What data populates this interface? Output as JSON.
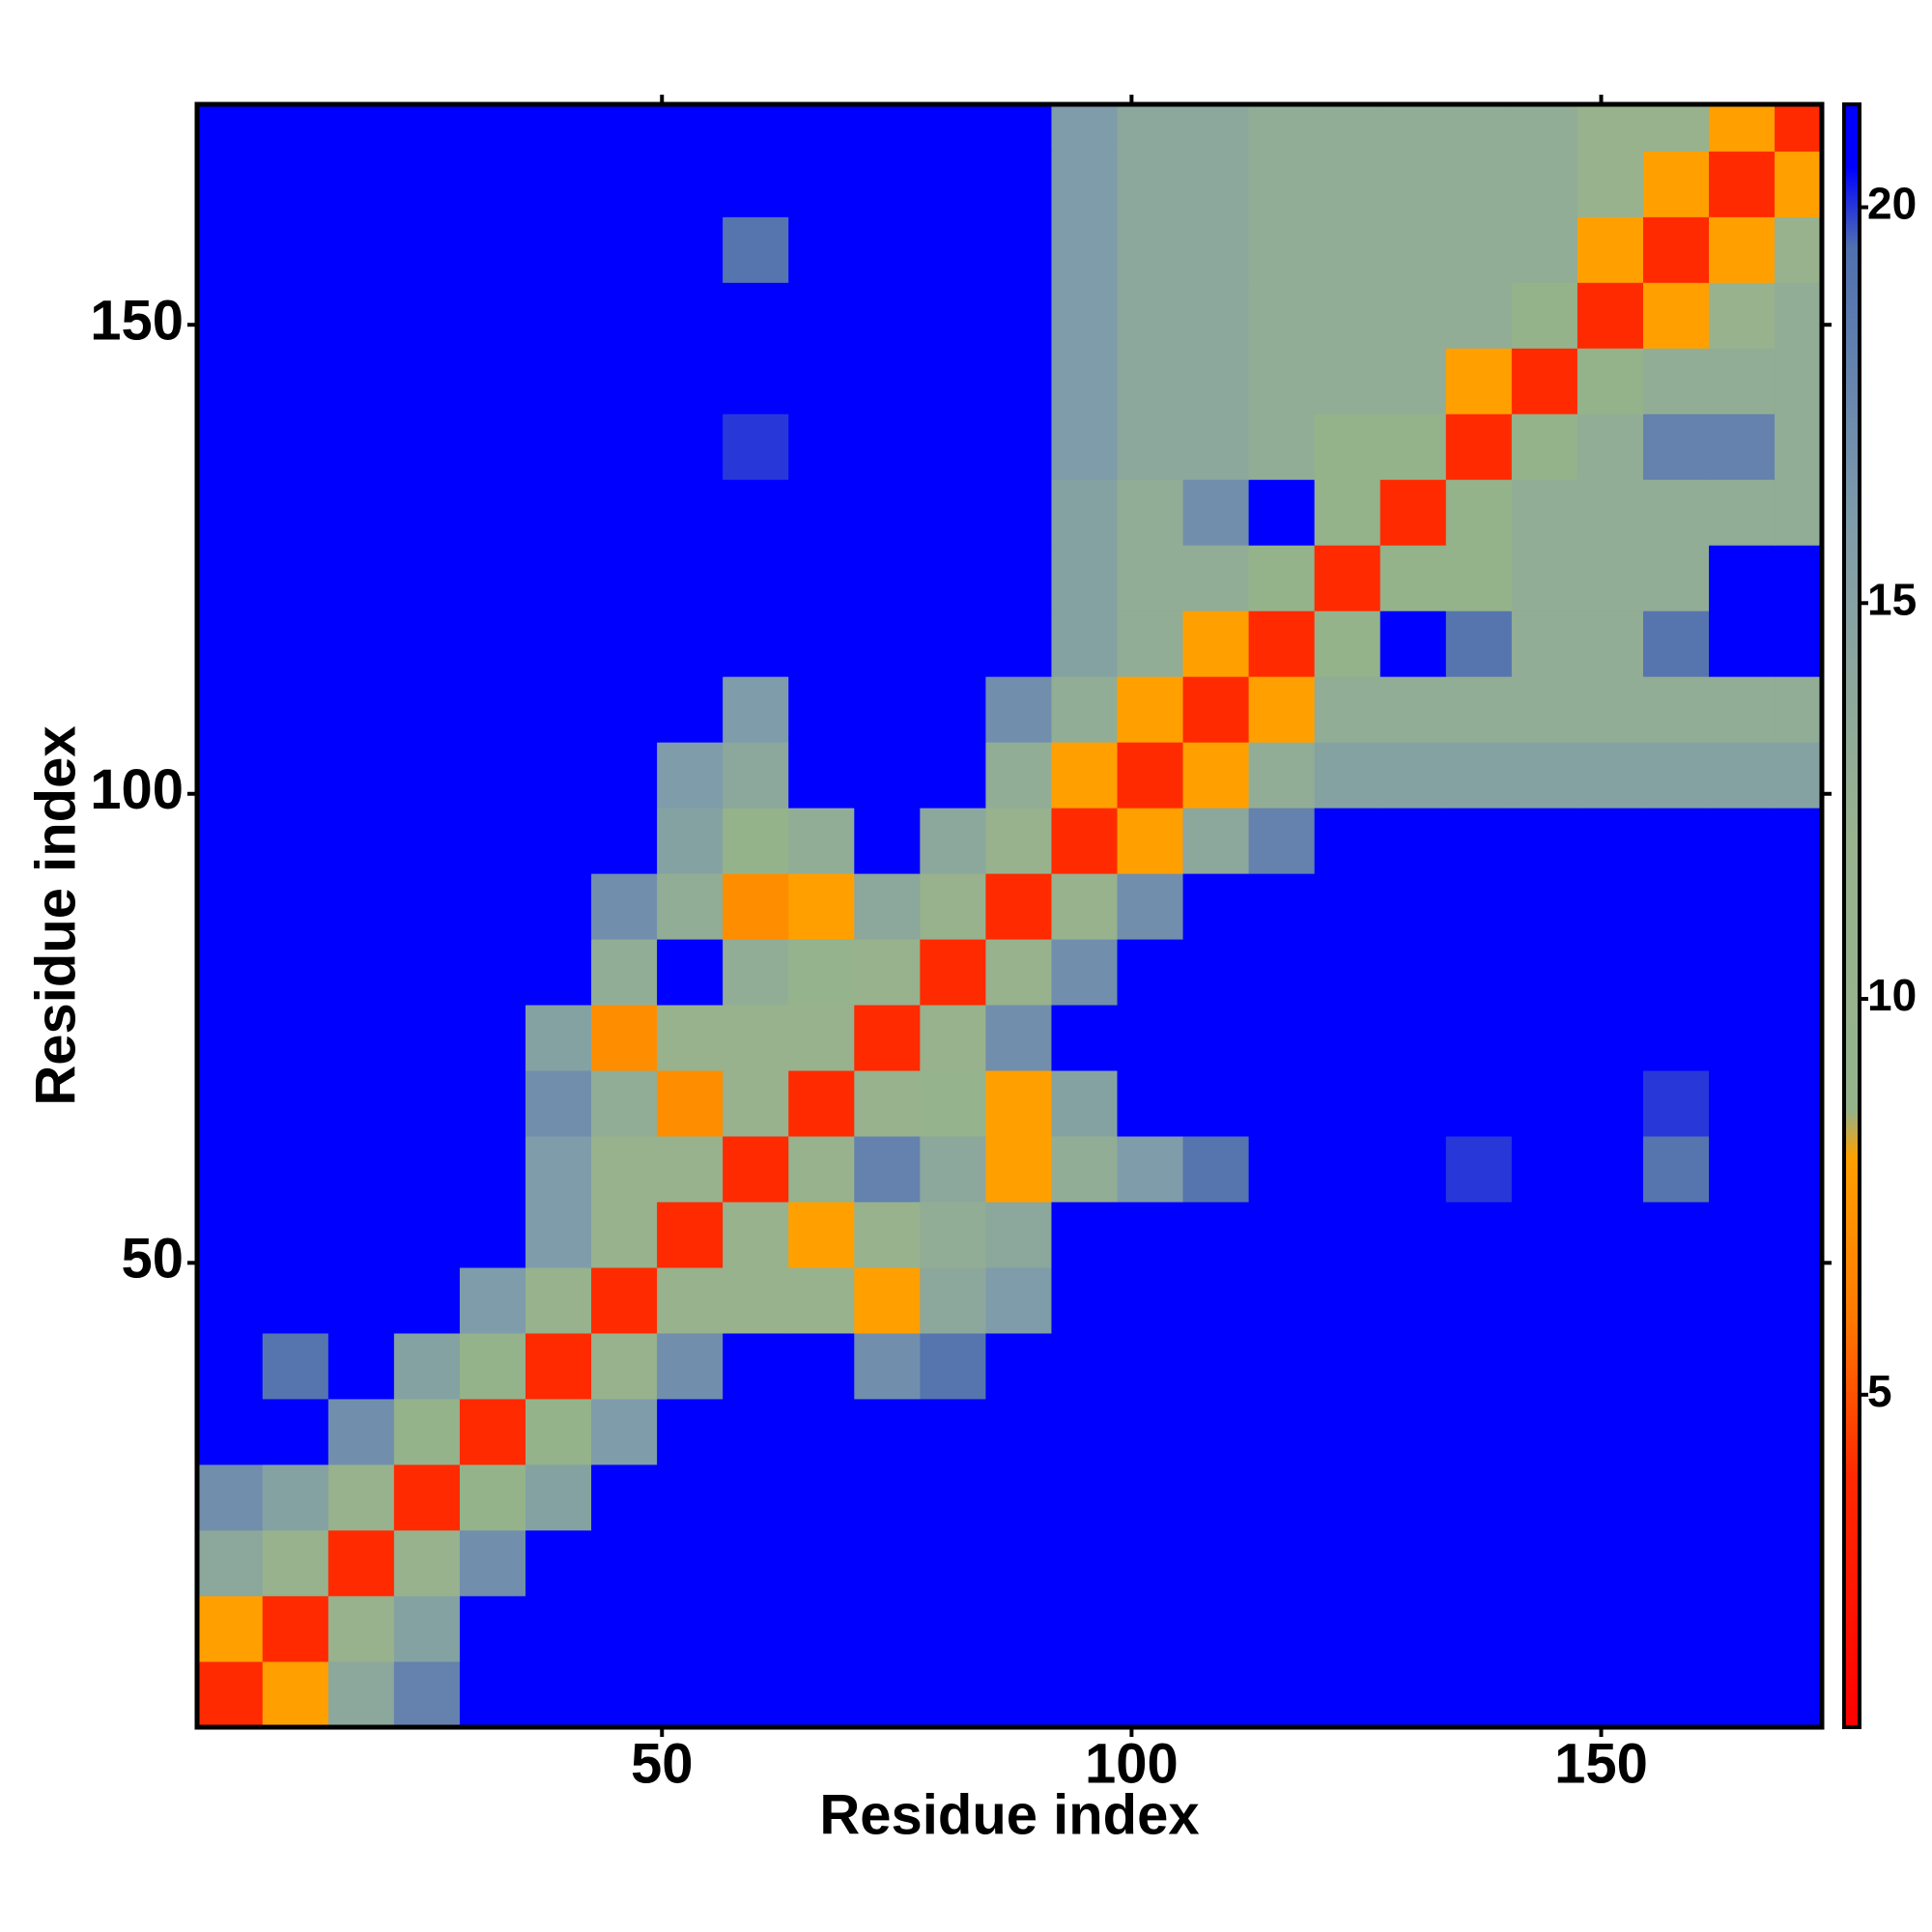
{
  "chart_data": {
    "type": "heatmap",
    "xlabel": "Residue index",
    "ylabel": "Residue index",
    "x": [
      0.5,
      7.5,
      14.5,
      21.5,
      28.5,
      35.5,
      42.5,
      49.5,
      56.5,
      63.5,
      70.5,
      77.5,
      84.5,
      91.5,
      98.5,
      105.5,
      112.5,
      119.5,
      126.5,
      133.5,
      140.5,
      147.5,
      154.5,
      161.5,
      168.5,
      173.5
    ],
    "y": [
      0.5,
      7.5,
      14.5,
      21.5,
      28.5,
      35.5,
      42.5,
      49.5,
      56.5,
      63.5,
      70.5,
      77.5,
      84.5,
      91.5,
      98.5,
      105.5,
      112.5,
      119.5,
      126.5,
      133.5,
      140.5,
      147.5,
      154.5,
      161.5,
      168.5,
      173.5
    ],
    "z": [
      [
        4,
        8,
        14,
        18,
        21,
        21,
        21,
        21,
        21,
        21,
        21,
        21,
        21,
        21,
        21,
        21,
        21,
        21,
        21,
        21,
        21,
        21,
        21,
        21,
        21
      ],
      [
        8,
        4,
        11,
        15,
        21,
        21,
        21,
        21,
        21,
        21,
        21,
        21,
        21,
        21,
        21,
        21,
        21,
        21,
        21,
        21,
        21,
        21,
        21,
        21,
        21
      ],
      [
        14,
        11,
        4,
        11,
        17,
        21,
        21,
        21,
        21,
        21,
        21,
        21,
        21,
        21,
        21,
        21,
        21,
        21,
        21,
        21,
        21,
        21,
        21,
        21,
        21
      ],
      [
        17,
        15,
        11,
        4,
        9,
        15,
        21,
        21,
        21,
        21,
        21,
        21,
        21,
        21,
        21,
        21,
        21,
        21,
        21,
        21,
        21,
        21,
        21,
        21,
        21
      ],
      [
        21,
        21,
        17,
        9,
        4,
        9,
        16,
        21,
        21,
        21,
        21,
        21,
        21,
        21,
        21,
        21,
        21,
        21,
        21,
        21,
        21,
        21,
        21,
        21,
        21
      ],
      [
        21,
        19,
        21,
        15,
        9,
        4,
        11,
        17,
        21,
        21,
        17,
        19,
        21,
        21,
        21,
        21,
        21,
        21,
        21,
        21,
        21,
        21,
        21,
        21,
        21
      ],
      [
        21,
        21,
        21,
        21,
        16,
        11,
        4,
        11,
        12,
        12,
        8,
        14,
        16,
        21,
        21,
        21,
        21,
        21,
        21,
        21,
        21,
        21,
        21,
        21,
        21
      ],
      [
        21,
        21,
        21,
        21,
        21,
        16,
        11,
        4,
        11,
        8,
        12,
        13,
        14,
        21,
        21,
        21,
        21,
        21,
        21,
        21,
        21,
        21,
        21,
        21,
        21
      ],
      [
        21,
        21,
        21,
        21,
        21,
        16,
        12,
        11,
        4,
        11,
        18,
        14,
        8,
        13,
        16,
        19,
        21,
        21,
        21,
        20,
        21,
        21,
        19,
        21,
        21
      ],
      [
        21,
        21,
        21,
        21,
        21,
        17,
        13,
        7,
        11,
        4,
        11,
        10,
        8,
        15,
        21,
        21,
        21,
        21,
        21,
        21,
        21,
        21,
        20,
        21,
        21
      ],
      [
        21,
        21,
        21,
        21,
        21,
        15,
        7,
        12,
        12,
        11,
        4,
        11,
        17,
        21,
        21,
        21,
        21,
        21,
        21,
        21,
        21,
        21,
        21,
        21,
        21
      ],
      [
        21,
        21,
        21,
        21,
        21,
        21,
        13,
        21,
        13,
        10,
        11,
        4,
        11,
        17,
        21,
        21,
        21,
        21,
        21,
        21,
        21,
        21,
        21,
        21,
        21
      ],
      [
        21,
        21,
        21,
        21,
        21,
        21,
        17,
        13,
        7,
        8,
        14,
        11,
        4,
        11,
        17,
        21,
        21,
        21,
        21,
        21,
        21,
        21,
        21,
        21,
        21
      ],
      [
        21,
        21,
        21,
        21,
        21,
        21,
        21,
        15,
        9,
        13,
        21,
        14,
        11,
        4,
        8,
        14,
        18,
        21,
        21,
        21,
        21,
        21,
        21,
        21,
        21
      ],
      [
        21,
        21,
        21,
        21,
        21,
        21,
        21,
        16,
        14,
        21,
        21,
        21,
        13,
        8,
        4,
        8,
        13,
        15,
        15,
        15,
        15,
        15,
        15,
        15,
        15
      ],
      [
        21,
        21,
        21,
        21,
        21,
        21,
        21,
        21,
        16,
        21,
        21,
        21,
        17,
        13,
        8,
        4,
        8,
        13,
        13,
        13,
        13,
        13,
        13,
        13,
        13
      ],
      [
        21,
        21,
        21,
        21,
        21,
        21,
        21,
        21,
        21,
        21,
        21,
        21,
        21,
        15,
        13,
        8,
        4,
        9,
        21,
        19,
        13,
        13,
        19,
        21,
        21
      ],
      [
        21,
        21,
        21,
        21,
        21,
        21,
        21,
        21,
        21,
        21,
        21,
        21,
        21,
        15,
        13,
        13,
        9,
        4,
        9,
        9,
        13,
        13,
        13,
        21,
        21
      ],
      [
        21,
        21,
        21,
        21,
        21,
        21,
        21,
        21,
        21,
        21,
        21,
        21,
        21,
        15,
        13,
        17,
        21,
        9,
        4,
        9,
        13,
        13,
        13,
        13,
        13
      ],
      [
        21,
        21,
        21,
        21,
        21,
        21,
        21,
        21,
        20,
        21,
        21,
        21,
        21,
        16,
        14,
        14,
        13,
        9,
        9,
        4,
        9,
        13,
        18,
        18,
        13
      ],
      [
        21,
        21,
        21,
        21,
        21,
        21,
        21,
        21,
        21,
        21,
        21,
        21,
        21,
        16,
        14,
        14,
        13,
        13,
        13,
        8,
        4,
        9,
        13,
        13,
        13
      ],
      [
        21,
        21,
        21,
        21,
        21,
        21,
        21,
        21,
        21,
        21,
        21,
        21,
        21,
        16,
        14,
        14,
        13,
        13,
        13,
        13,
        9,
        4,
        8,
        11,
        13
      ],
      [
        21,
        21,
        21,
        21,
        21,
        21,
        21,
        21,
        19,
        21,
        21,
        21,
        21,
        16,
        14,
        14,
        13,
        13,
        13,
        13,
        13,
        8,
        4,
        8,
        11
      ],
      [
        21,
        21,
        21,
        21,
        21,
        21,
        21,
        21,
        21,
        21,
        21,
        21,
        21,
        16,
        14,
        14,
        13,
        13,
        13,
        13,
        13,
        11,
        8,
        4,
        8
      ],
      [
        21,
        21,
        21,
        21,
        21,
        21,
        21,
        21,
        21,
        21,
        21,
        21,
        21,
        16,
        14,
        14,
        13,
        13,
        13,
        13,
        13,
        12,
        11,
        8,
        4
      ]
    ],
    "xlim": [
      0.5,
      173.5
    ],
    "ylim": [
      0.5,
      173.5
    ],
    "xticks": [
      50,
      100,
      150
    ],
    "yticks": [
      50,
      100,
      150
    ],
    "zlim": [
      0.8,
      21.3
    ],
    "zticks": [
      5,
      10,
      15,
      20
    ],
    "colorscale": [
      [
        0.8,
        "#ff0000"
      ],
      [
        4,
        "#ff2a00"
      ],
      [
        6,
        "#ff7a00"
      ],
      [
        8,
        "#ffa000"
      ],
      [
        8.6,
        "#93b38b"
      ],
      [
        12,
        "#98b28e"
      ],
      [
        16,
        "#7f9caa"
      ],
      [
        19.5,
        "#4f6fb0"
      ],
      [
        20.5,
        "#0000ff"
      ],
      [
        21.3,
        "#0000ff"
      ]
    ]
  }
}
